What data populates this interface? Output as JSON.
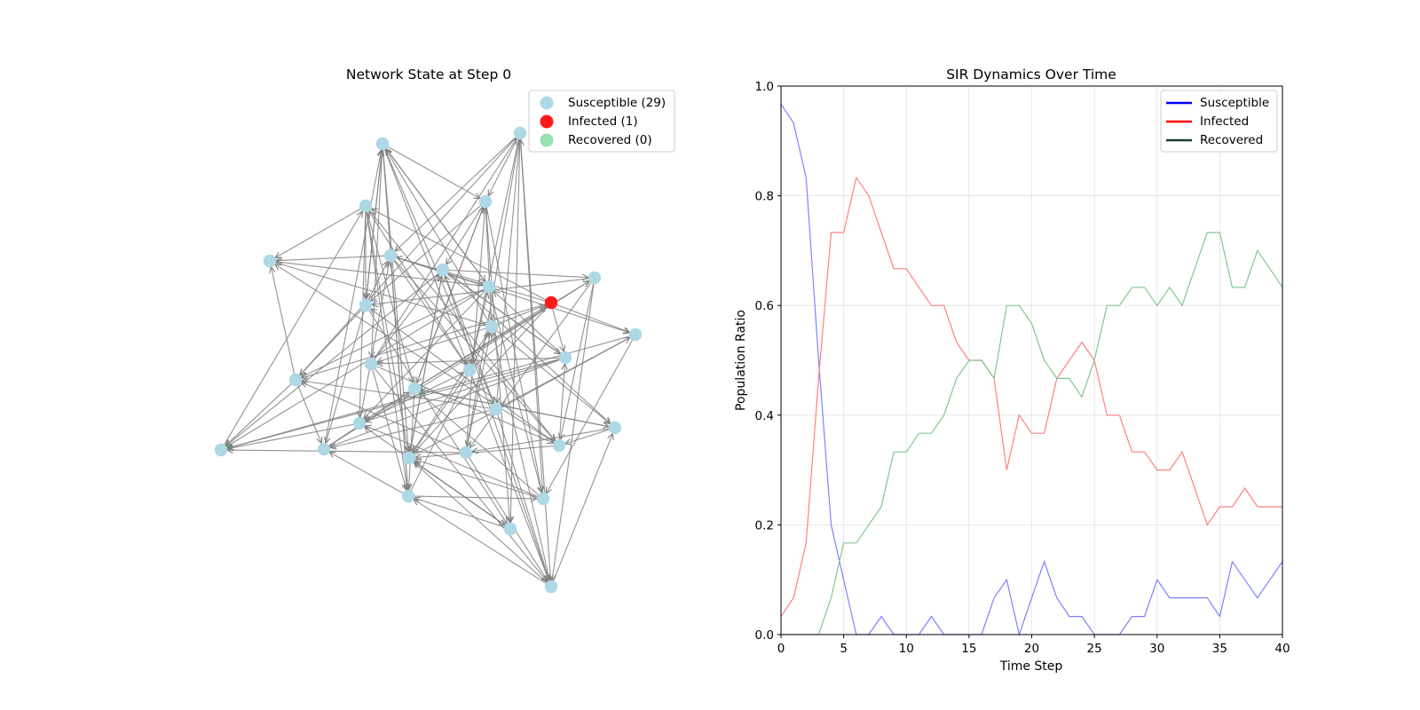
{
  "network": {
    "title": "Network State at Step 0",
    "legend": [
      {
        "label": "Susceptible (29)",
        "color": "#add8e6"
      },
      {
        "label": "Infected (1)",
        "color": "#ff0000"
      },
      {
        "label": "Recovered (0)",
        "color": "#98e0b0"
      }
    ],
    "colors": {
      "susceptible": "#add8e6",
      "infected": "#ff1a1a",
      "edge": "#808080"
    }
  },
  "chart_data": {
    "type": "line",
    "title": "SIR Dynamics Over Time",
    "xlabel": "Time Step",
    "ylabel": "Population Ratio",
    "xlim": [
      0,
      40
    ],
    "ylim": [
      0,
      1
    ],
    "xticks": [
      "0",
      "5",
      "10",
      "15",
      "20",
      "25",
      "30",
      "35",
      "40"
    ],
    "yticks": [
      "0.0",
      "0.2",
      "0.4",
      "0.6",
      "0.8",
      "1.0"
    ],
    "grid": true,
    "legend_position": "top-right",
    "legend": [
      {
        "name": "Susceptible",
        "color": "#0000ff"
      },
      {
        "name": "Infected",
        "color": "#ff0000"
      },
      {
        "name": "Recovered",
        "color": "#1f3d2a"
      }
    ],
    "x": [
      0,
      1,
      2,
      3,
      4,
      5,
      6,
      7,
      8,
      9,
      10,
      11,
      12,
      13,
      14,
      15,
      16,
      17,
      18,
      19,
      20,
      21,
      22,
      23,
      24,
      25,
      26,
      27,
      28,
      29,
      30,
      31,
      32,
      33,
      34,
      35,
      36,
      37,
      38,
      39,
      40
    ],
    "series": [
      {
        "name": "Susceptible",
        "color": "#8080ff",
        "values": [
          0.967,
          0.933,
          0.833,
          0.5,
          0.2,
          0.1,
          0.0,
          0.0,
          0.033,
          0.0,
          0.0,
          0.0,
          0.033,
          0.0,
          0.0,
          0.0,
          0.0,
          0.067,
          0.1,
          0.0,
          0.067,
          0.133,
          0.067,
          0.033,
          0.033,
          0.0,
          0.0,
          0.0,
          0.033,
          0.033,
          0.1,
          0.067,
          0.067,
          0.067,
          0.067,
          0.033,
          0.133,
          0.1,
          0.067,
          0.1,
          0.133
        ]
      },
      {
        "name": "Infected",
        "color": "#ff8080",
        "values": [
          0.033,
          0.067,
          0.167,
          0.467,
          0.733,
          0.733,
          0.833,
          0.8,
          0.733,
          0.667,
          0.667,
          0.633,
          0.6,
          0.6,
          0.533,
          0.5,
          0.5,
          0.467,
          0.3,
          0.4,
          0.367,
          0.367,
          0.467,
          0.5,
          0.533,
          0.5,
          0.4,
          0.4,
          0.333,
          0.333,
          0.3,
          0.3,
          0.333,
          0.267,
          0.2,
          0.233,
          0.233,
          0.267,
          0.233,
          0.233,
          0.233
        ]
      },
      {
        "name": "Recovered",
        "color": "#80c890",
        "values": [
          0.0,
          0.0,
          0.0,
          0.0,
          0.067,
          0.167,
          0.167,
          0.2,
          0.233,
          0.333,
          0.333,
          0.367,
          0.367,
          0.4,
          0.467,
          0.5,
          0.5,
          0.467,
          0.6,
          0.6,
          0.567,
          0.5,
          0.467,
          0.467,
          0.433,
          0.5,
          0.6,
          0.6,
          0.633,
          0.633,
          0.6,
          0.633,
          0.6,
          0.667,
          0.733,
          0.733,
          0.633,
          0.633,
          0.7,
          0.667,
          0.633
        ]
      }
    ]
  }
}
